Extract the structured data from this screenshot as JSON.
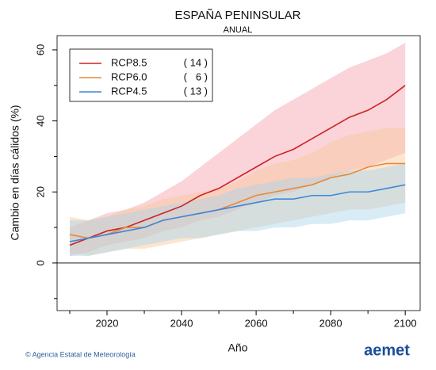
{
  "chart_data": {
    "type": "line",
    "title": "ESPAÑA PENINSULAR",
    "subtitle": "ANUAL",
    "x_label": "Año",
    "y_label": "Cambio en días cálidos (%)",
    "x": [
      2010,
      2015,
      2020,
      2025,
      2030,
      2035,
      2040,
      2045,
      2050,
      2055,
      2060,
      2065,
      2070,
      2075,
      2080,
      2085,
      2090,
      2095,
      2100
    ],
    "xlim": [
      2006.6,
      2104
    ],
    "xticks": [
      2020,
      2040,
      2060,
      2080,
      2100
    ],
    "xminor": [
      2010,
      2030,
      2050,
      2070,
      2090
    ],
    "ylim": [
      -13.4,
      64
    ],
    "yticks": [
      0,
      20,
      40,
      60
    ],
    "yminor": [
      -10,
      10,
      30,
      50
    ],
    "zero_line": true,
    "series": [
      {
        "name": "RCP8.5",
        "models": "( 14 )",
        "color": "#cc2222",
        "band_color": "#f4a0aa",
        "values": [
          5,
          7,
          9,
          10,
          12,
          14,
          16,
          19,
          21,
          24,
          27,
          30,
          32,
          35,
          38,
          41,
          43,
          46,
          50
        ],
        "lower": [
          2,
          3,
          5,
          6,
          7,
          9,
          10,
          12,
          13,
          15,
          17,
          19,
          20,
          22,
          24,
          26,
          27,
          29,
          31
        ],
        "upper": [
          10,
          12,
          14,
          15,
          17,
          20,
          23,
          27,
          31,
          35,
          39,
          43,
          46,
          49,
          52,
          55,
          57,
          59,
          62
        ]
      },
      {
        "name": "RCP6.0",
        "models": "(   6 )",
        "color": "#e8883a",
        "band_color": "#f8c89a",
        "values": [
          8,
          7,
          8,
          10,
          10,
          12,
          13,
          14,
          15,
          17,
          19,
          20,
          21,
          22,
          24,
          25,
          27,
          28,
          28
        ],
        "lower": [
          3,
          2,
          3,
          4,
          4,
          5,
          6,
          7,
          8,
          9,
          10,
          11,
          12,
          13,
          14,
          15,
          15,
          16,
          17
        ],
        "upper": [
          13,
          12,
          13,
          15,
          16,
          18,
          19,
          20,
          21,
          23,
          26,
          28,
          29,
          31,
          34,
          36,
          37,
          38,
          38
        ]
      },
      {
        "name": "RCP4.5",
        "models": "( 13 )",
        "color": "#3b88d8",
        "band_color": "#a8d4ec",
        "values": [
          6,
          7,
          8,
          9,
          10,
          12,
          13,
          14,
          15,
          16,
          17,
          18,
          18,
          19,
          19,
          20,
          20,
          21,
          22
        ],
        "lower": [
          2,
          2,
          3,
          4,
          5,
          6,
          7,
          7,
          8,
          9,
          9,
          10,
          10,
          11,
          11,
          12,
          12,
          13,
          14
        ],
        "upper": [
          12,
          12,
          13,
          14,
          15,
          16,
          17,
          18,
          19,
          21,
          22,
          23,
          24,
          24,
          25,
          26,
          26,
          27,
          28
        ]
      }
    ]
  },
  "footer": {
    "credit": "© Agencia Estatal de Meteorología",
    "logo": "aemet"
  }
}
